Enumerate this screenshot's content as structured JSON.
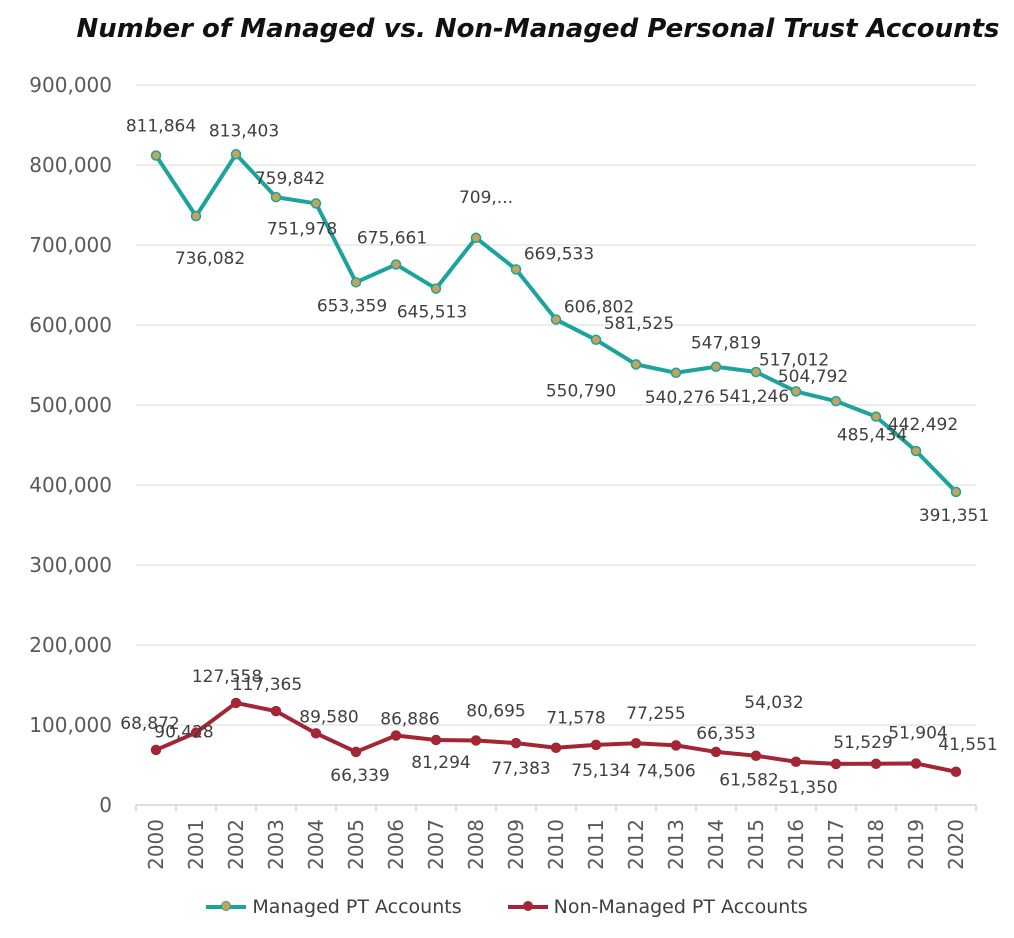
{
  "chart_data": {
    "type": "line",
    "title": "Number of Managed vs. Non-Managed Personal Trust Accounts",
    "x": [
      "2000",
      "2001",
      "2002",
      "2003",
      "2004",
      "2005",
      "2006",
      "2007",
      "2008",
      "2009",
      "2010",
      "2011",
      "2012",
      "2013",
      "2014",
      "2015",
      "2016",
      "2017",
      "2018",
      "2019",
      "2020"
    ],
    "ylim": [
      0,
      900000
    ],
    "yticks": [
      "0",
      "100,000",
      "200,000",
      "300,000",
      "400,000",
      "500,000",
      "600,000",
      "700,000",
      "800,000",
      "900,000"
    ],
    "grid": true,
    "legend_position": "bottom",
    "series": [
      {
        "name": "Managed PT Accounts",
        "color": "#1ba39c",
        "marker_color": "#c9a25a",
        "values": [
          811864,
          736082,
          813403,
          759842,
          751978,
          653359,
          675661,
          645513,
          709000,
          669533,
          606802,
          581525,
          550790,
          540276,
          547819,
          541246,
          517012,
          504792,
          485434,
          442492,
          391351
        ],
        "labels": [
          "811,864",
          "736,082",
          "813,403",
          "759,842",
          "751,978",
          "653,359",
          "675,661",
          "645,513",
          "709,...",
          "669,533",
          "606,802",
          "581,525",
          "550,790",
          "540,276",
          "547,819",
          "541,246",
          "517,012",
          "504,792",
          "485,434",
          "442,492",
          "391,351"
        ]
      },
      {
        "name": "Non-Managed PT Accounts",
        "color": "#a32634",
        "marker_color": "#a32634",
        "values": [
          68872,
          90428,
          127558,
          117365,
          89580,
          66339,
          86886,
          81294,
          80695,
          77383,
          71578,
          75134,
          77255,
          74506,
          66353,
          61582,
          54032,
          51350,
          51529,
          51904,
          41551
        ],
        "labels": [
          "68,872",
          "90,428",
          "127,558",
          "117,365",
          "89,580",
          "66,339",
          "86,886",
          "81,294",
          "80,695",
          "77,383",
          "71,578",
          "75,134",
          "77,255",
          "74,506",
          "66,353",
          "61,582",
          "54,032",
          "51,350",
          "51,529",
          "51,904",
          "41,551"
        ]
      }
    ]
  }
}
